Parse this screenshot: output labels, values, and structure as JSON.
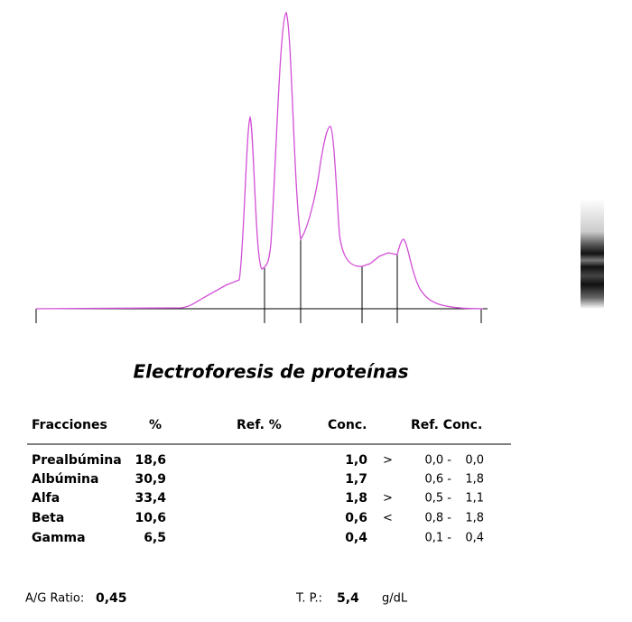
{
  "title": "Electroforesis de proteínas",
  "table": {
    "headers": [
      "Fracciones",
      "%",
      "Ref. %",
      "Conc.",
      "Ref. Conc."
    ],
    "rows": [
      {
        "name": "Prealbúmina",
        "percent": "18,6",
        "conc": "1,0",
        "flag": ">",
        "ref_low": "0,0 -",
        "ref_high": "0,0"
      },
      {
        "name": "Albúmina",
        "percent": "30,9",
        "conc": "1,7",
        "ref_low": "0,6 -",
        "ref_high": "1,8"
      },
      {
        "name": "Alfa",
        "percent": "33,4",
        "conc": "1,8",
        "flag": ">",
        "ref_low": "0,5 -",
        "ref_high": "1,1"
      },
      {
        "name": "Beta",
        "percent": "10,6",
        "conc": "0,6",
        "flag": "<",
        "ref_low": "0,8 -",
        "ref_high": "1,8"
      },
      {
        "name": "Gamma",
        "percent": "6,5",
        "conc": "0,4",
        "ref_low": "0,1 -",
        "ref_high": "0,4"
      }
    ]
  },
  "footer": {
    "ag_label": "A/G Ratio:",
    "ag_value": "0,45",
    "tp_label": "T. P.:",
    "tp_value": "5,4",
    "tp_unit": "g/dL"
  }
}
